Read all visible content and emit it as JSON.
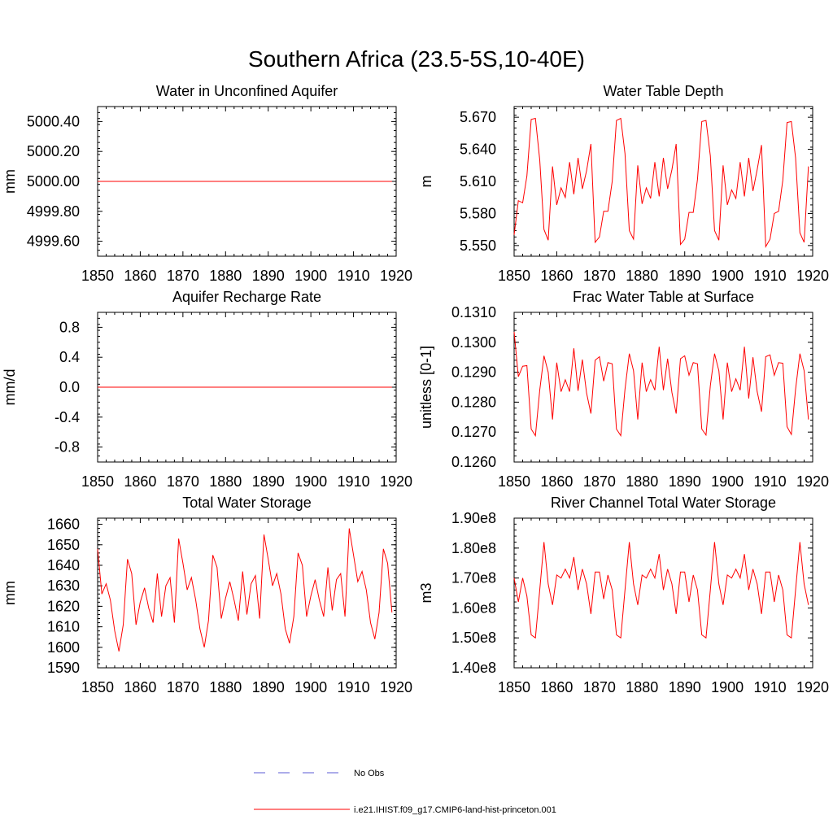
{
  "figure": {
    "title": "Southern Africa (23.5-5S,10-40E)",
    "legend": [
      {
        "label": "No Obs",
        "style": "dashed",
        "color": "#5b5bd6"
      },
      {
        "label": "i.e21.IHIST.f09_g17.CMIP6-land-hist-princeton.001",
        "style": "solid",
        "color": "#ff0000"
      }
    ]
  },
  "chart_data": [
    {
      "type": "line",
      "title": "Water in Unconfined Aquifer",
      "ylabel": "mm",
      "xlim": [
        1850,
        1920
      ],
      "ylim": [
        4999.5,
        5000.5
      ],
      "xticks": [
        1850,
        1860,
        1870,
        1880,
        1890,
        1900,
        1910,
        1920
      ],
      "yticks": [
        4999.6,
        4999.8,
        5000.0,
        5000.2,
        5000.4
      ],
      "ytick_labels": [
        "4999.60",
        "4999.80",
        "5000.00",
        "5000.20",
        "5000.40"
      ],
      "series": [
        {
          "color": "#ff0000",
          "x0": 1850,
          "values": [
            5000,
            5000,
            5000,
            5000,
            5000,
            5000,
            5000,
            5000,
            5000,
            5000,
            5000,
            5000,
            5000,
            5000,
            5000,
            5000,
            5000,
            5000,
            5000,
            5000,
            5000,
            5000,
            5000,
            5000,
            5000,
            5000,
            5000,
            5000,
            5000,
            5000,
            5000,
            5000,
            5000,
            5000,
            5000,
            5000,
            5000,
            5000,
            5000,
            5000,
            5000,
            5000,
            5000,
            5000,
            5000,
            5000,
            5000,
            5000,
            5000,
            5000,
            5000,
            5000,
            5000,
            5000,
            5000,
            5000,
            5000,
            5000,
            5000,
            5000,
            5000,
            5000,
            5000,
            5000,
            5000,
            5000,
            5000,
            5000,
            5000,
            5000
          ]
        }
      ]
    },
    {
      "type": "line",
      "title": "Water Table Depth",
      "ylabel": "m",
      "xlim": [
        1850,
        1920
      ],
      "ylim": [
        5.54,
        5.68
      ],
      "xticks": [
        1850,
        1860,
        1870,
        1880,
        1890,
        1900,
        1910,
        1920
      ],
      "yticks": [
        5.55,
        5.58,
        5.61,
        5.64,
        5.67
      ],
      "ytick_labels": [
        "5.550",
        "5.580",
        "5.610",
        "5.640",
        "5.670"
      ],
      "series": [
        {
          "color": "#ff0000",
          "x0": 1850,
          "values": [
            5.56,
            5.592,
            5.59,
            5.615,
            5.668,
            5.669,
            5.63,
            5.565,
            5.555,
            5.624,
            5.588,
            5.604,
            5.595,
            5.628,
            5.598,
            5.632,
            5.603,
            5.62,
            5.645,
            5.553,
            5.558,
            5.582,
            5.582,
            5.61,
            5.667,
            5.669,
            5.636,
            5.564,
            5.556,
            5.625,
            5.589,
            5.604,
            5.594,
            5.628,
            5.596,
            5.632,
            5.603,
            5.621,
            5.645,
            5.551,
            5.556,
            5.581,
            5.581,
            5.612,
            5.666,
            5.667,
            5.634,
            5.564,
            5.555,
            5.625,
            5.588,
            5.602,
            5.594,
            5.628,
            5.596,
            5.632,
            5.601,
            5.621,
            5.644,
            5.549,
            5.556,
            5.58,
            5.582,
            5.611,
            5.665,
            5.666,
            5.632,
            5.562,
            5.553,
            5.624
          ]
        }
      ]
    },
    {
      "type": "line",
      "title": "Aquifer Recharge Rate",
      "ylabel": "mm/d",
      "xlim": [
        1850,
        1920
      ],
      "ylim": [
        -1.0,
        1.0
      ],
      "xticks": [
        1850,
        1860,
        1870,
        1880,
        1890,
        1900,
        1910,
        1920
      ],
      "yticks": [
        -0.8,
        -0.4,
        0.0,
        0.4,
        0.8
      ],
      "ytick_labels": [
        "-0.8",
        "-0.4",
        "0.0",
        "0.4",
        "0.8"
      ],
      "series": [
        {
          "color": "#ff0000",
          "x0": 1850,
          "values": [
            0,
            0,
            0,
            0,
            0,
            0,
            0,
            0,
            0,
            0,
            0,
            0,
            0,
            0,
            0,
            0,
            0,
            0,
            0,
            0,
            0,
            0,
            0,
            0,
            0,
            0,
            0,
            0,
            0,
            0,
            0,
            0,
            0,
            0,
            0,
            0,
            0,
            0,
            0,
            0,
            0,
            0,
            0,
            0,
            0,
            0,
            0,
            0,
            0,
            0,
            0,
            0,
            0,
            0,
            0,
            0,
            0,
            0,
            0,
            0,
            0,
            0,
            0,
            0,
            0,
            0,
            0,
            0,
            0,
            0
          ]
        }
      ]
    },
    {
      "type": "line",
      "title": "Frac Water Table at Surface",
      "ylabel": "unitless [0-1]",
      "xlim": [
        1850,
        1920
      ],
      "ylim": [
        0.126,
        0.131
      ],
      "xticks": [
        1850,
        1860,
        1870,
        1880,
        1890,
        1900,
        1910,
        1920
      ],
      "yticks": [
        0.126,
        0.127,
        0.128,
        0.129,
        0.13,
        0.131
      ],
      "ytick_labels": [
        "0.1260",
        "0.1270",
        "0.1280",
        "0.1290",
        "0.1300",
        "0.1310"
      ],
      "series": [
        {
          "color": "#ff0000",
          "x0": 1850,
          "values": [
            0.13035,
            0.12885,
            0.1292,
            0.12922,
            0.1271,
            0.12688,
            0.1284,
            0.12955,
            0.129,
            0.12742,
            0.12932,
            0.12835,
            0.12875,
            0.12835,
            0.1298,
            0.12838,
            0.12942,
            0.1283,
            0.12762,
            0.1294,
            0.12952,
            0.1287,
            0.12932,
            0.12928,
            0.1271,
            0.12688,
            0.12843,
            0.12962,
            0.12905,
            0.12742,
            0.12932,
            0.12835,
            0.12875,
            0.1284,
            0.12985,
            0.1284,
            0.12945,
            0.12832,
            0.12762,
            0.12945,
            0.12955,
            0.1289,
            0.12932,
            0.12928,
            0.1271,
            0.1269,
            0.12855,
            0.12962,
            0.12905,
            0.12742,
            0.12932,
            0.12835,
            0.12878,
            0.1284,
            0.12985,
            0.12812,
            0.1295,
            0.12835,
            0.12768,
            0.12952,
            0.12958,
            0.1289,
            0.12932,
            0.1293,
            0.12718,
            0.12692,
            0.12843,
            0.12962,
            0.12905,
            0.12742
          ]
        }
      ]
    },
    {
      "type": "line",
      "title": "Total Water Storage",
      "ylabel": "mm",
      "xlim": [
        1850,
        1920
      ],
      "ylim": [
        1590,
        1663
      ],
      "xticks": [
        1850,
        1860,
        1870,
        1880,
        1890,
        1900,
        1910,
        1920
      ],
      "yticks": [
        1590,
        1600,
        1610,
        1620,
        1630,
        1640,
        1650,
        1660
      ],
      "ytick_labels": [
        "1590",
        "1600",
        "1610",
        "1620",
        "1630",
        "1640",
        "1650",
        "1660"
      ],
      "series": [
        {
          "color": "#ff0000",
          "x0": 1850,
          "values": [
            1648,
            1626,
            1631,
            1623,
            1608,
            1598,
            1611,
            1643,
            1636,
            1611,
            1622,
            1629,
            1619,
            1612,
            1636,
            1615,
            1630,
            1634,
            1612,
            1653,
            1641,
            1628,
            1634,
            1623,
            1609,
            1600,
            1613,
            1645,
            1639,
            1614,
            1624,
            1632,
            1623,
            1613,
            1637,
            1616,
            1631,
            1635,
            1614,
            1655,
            1643,
            1630,
            1636,
            1626,
            1609,
            1602,
            1615,
            1646,
            1640,
            1615,
            1625,
            1633,
            1623,
            1615,
            1639,
            1618,
            1633,
            1636,
            1615,
            1658,
            1645,
            1632,
            1637,
            1628,
            1612,
            1604,
            1617,
            1648,
            1641,
            1617
          ]
        }
      ]
    },
    {
      "type": "line",
      "title": "River Channel Total Water Storage",
      "ylabel": "m3",
      "xlim": [
        1850,
        1920
      ],
      "ylim": [
        140000000.0,
        190000000.0
      ],
      "xticks": [
        1850,
        1860,
        1870,
        1880,
        1890,
        1900,
        1910,
        1920
      ],
      "yticks": [
        140000000.0,
        150000000.0,
        160000000.0,
        170000000.0,
        180000000.0,
        190000000.0
      ],
      "ytick_labels": [
        "1.40e8",
        "1.50e8",
        "1.60e8",
        "1.70e8",
        "1.80e8",
        "1.90e8"
      ],
      "series": [
        {
          "color": "#ff0000",
          "x0": 1850,
          "values": [
            170000000.0,
            162000000.0,
            170000000.0,
            164000000.0,
            151000000.0,
            150000000.0,
            166000000.0,
            182000000.0,
            168000000.0,
            161000000.0,
            171000000.0,
            170000000.0,
            173000000.0,
            170000000.0,
            177000000.0,
            166000000.0,
            173000000.0,
            168000000.0,
            158000000.0,
            172000000.0,
            172000000.0,
            163000000.0,
            171000000.0,
            166000000.0,
            151000000.0,
            150000000.0,
            166000000.0,
            182000000.0,
            168000000.0,
            161000000.0,
            171000000.0,
            170000000.0,
            173000000.0,
            170000000.0,
            178000000.0,
            166000000.0,
            173000000.0,
            168000000.0,
            158000000.0,
            172000000.0,
            172000000.0,
            162000000.0,
            171000000.0,
            166000000.0,
            151000000.0,
            150000000.0,
            166000000.0,
            182000000.0,
            168000000.0,
            161000000.0,
            171000000.0,
            170000000.0,
            173000000.0,
            170000000.0,
            178000000.0,
            166000000.0,
            173000000.0,
            168000000.0,
            158000000.0,
            172000000.0,
            172000000.0,
            162000000.0,
            171000000.0,
            166000000.0,
            151000000.0,
            150000000.0,
            166000000.0,
            182000000.0,
            168000000.0,
            161000000.0
          ]
        }
      ]
    }
  ]
}
